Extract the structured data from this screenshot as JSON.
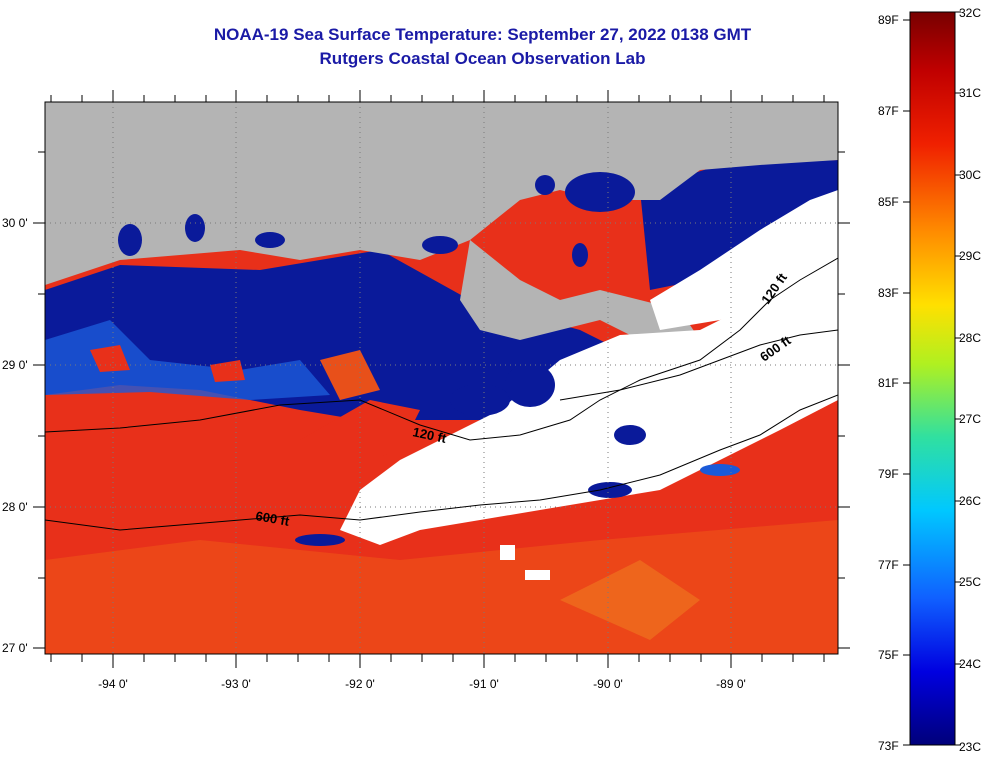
{
  "title": {
    "line1": "NOAA-19 Sea Surface Temperature:  September 27, 2022 0138 GMT",
    "line2": "Rutgers Coastal Ocean Observation Lab"
  },
  "map": {
    "lon_labels": [
      "-94 0'",
      "-93 0'",
      "-92 0'",
      "-91 0'",
      "-90 0'",
      "-89 0'"
    ],
    "lat_labels": [
      "30 0'",
      "29 0'",
      "28 0'",
      "27 0'"
    ],
    "contour_labels": [
      "120 ft",
      "600 ft",
      "120 ft",
      "600 ft"
    ],
    "colors": {
      "land": "#b4b4b4",
      "cloud": "#ffffff",
      "cold": "#0a1a9a",
      "warm": "#e8301a"
    }
  },
  "colorbar": {
    "fahrenheit_labels": [
      "89F",
      "87F",
      "85F",
      "83F",
      "81F",
      "79F",
      "77F",
      "75F",
      "73F"
    ],
    "celsius_labels": [
      "32C",
      "31C",
      "30C",
      "29C",
      "28C",
      "27C",
      "26C",
      "25C",
      "24C",
      "23C"
    ]
  }
}
